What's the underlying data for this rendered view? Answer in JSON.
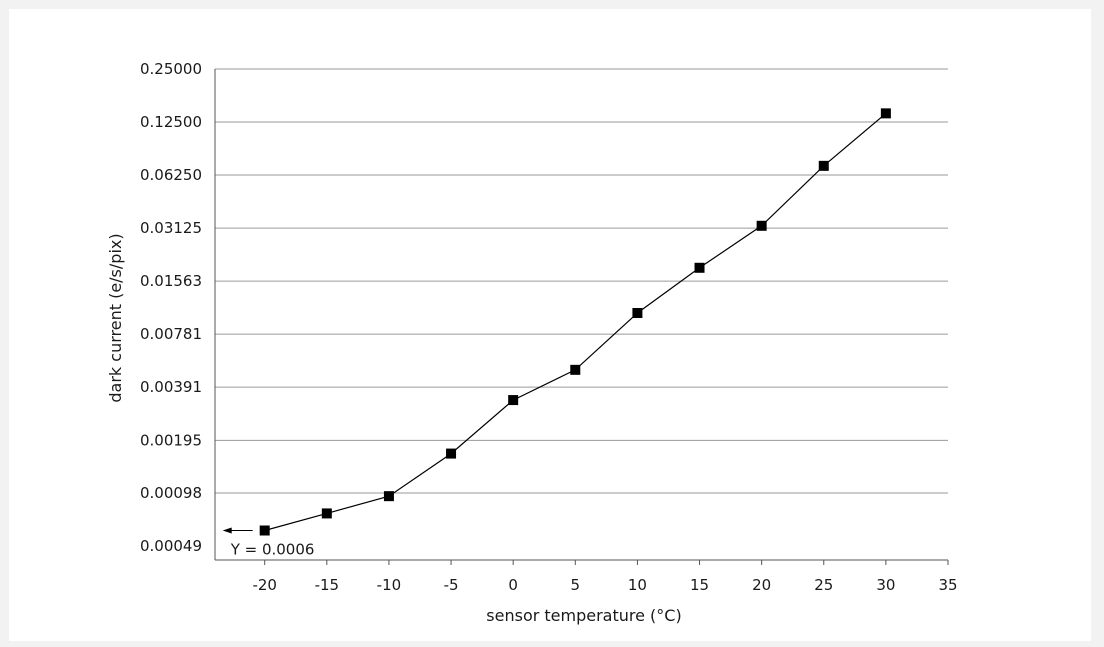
{
  "chart_data": {
    "type": "line",
    "title": "",
    "xlabel": "sensor temperature (°C)",
    "ylabel": "dark current (e/s/pix)",
    "x_ticks": [
      "-20",
      "-15",
      "-10",
      "-5",
      "0",
      "5",
      "10",
      "15",
      "20",
      "25",
      "30",
      "35"
    ],
    "x_tick_values": [
      -20,
      -15,
      -10,
      -5,
      0,
      5,
      10,
      15,
      20,
      25,
      30,
      35
    ],
    "y_ticks": [
      "0.00049",
      "0.00098",
      "0.00195",
      "0.00391",
      "0.00781",
      "0.01563",
      "0.03125",
      "0.06250",
      "0.12500",
      "0.25000"
    ],
    "y_tick_values": [
      0.00049,
      0.00098,
      0.00195,
      0.00391,
      0.00781,
      0.01563,
      0.03125,
      0.0625,
      0.125,
      0.25
    ],
    "y_scale": "log2",
    "xlim": [
      -24,
      35
    ],
    "grid": "horizontal",
    "series": [
      {
        "x": [
          -20,
          -15,
          -10,
          -5,
          0,
          5,
          10,
          15,
          20,
          25,
          30
        ],
        "y": [
          0.0006,
          0.00075,
          0.00094,
          0.00164,
          0.0033,
          0.0049,
          0.0103,
          0.0186,
          0.0322,
          0.0705,
          0.14
        ],
        "marker": "square",
        "color": "#000000"
      }
    ],
    "annotation": {
      "text": "Y = 0.0006",
      "arrow": "left"
    }
  }
}
